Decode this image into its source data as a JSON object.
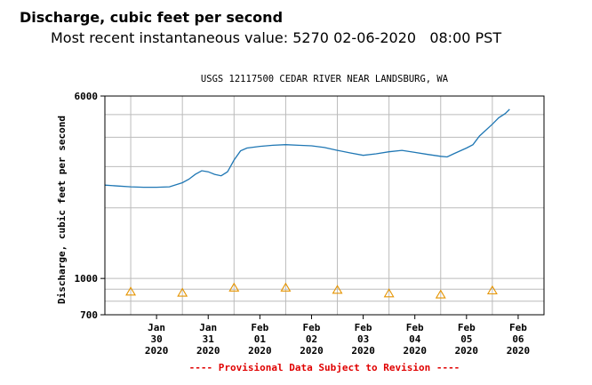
{
  "header": {
    "title": "Discharge, cubic feet per second",
    "recent_label": "Most recent instantaneous value:",
    "recent_value": "5270",
    "recent_date": "02-06-2020",
    "recent_time": "08:00 PST"
  },
  "chart_data": {
    "type": "line",
    "title": "USGS 12117500 CEDAR RIVER NEAR LANDSBURG, WA",
    "ylabel": "Discharge, cubic feet per second",
    "xlabel": "",
    "yscale": "log",
    "ylim": [
      700,
      6000
    ],
    "xlim": [
      "2020-01-29T12:00",
      "2020-02-07T00:00"
    ],
    "y_tick_labels": [
      "700",
      "1000",
      "6000"
    ],
    "x_tick_labels": [
      {
        "date": "2020-01-30",
        "line1": "Jan",
        "line2": "30",
        "line3": "2020"
      },
      {
        "date": "2020-01-31",
        "line1": "Jan",
        "line2": "31",
        "line3": "2020"
      },
      {
        "date": "2020-02-01",
        "line1": "Feb",
        "line2": "01",
        "line3": "2020"
      },
      {
        "date": "2020-02-02",
        "line1": "Feb",
        "line2": "02",
        "line3": "2020"
      },
      {
        "date": "2020-02-03",
        "line1": "Feb",
        "line2": "03",
        "line3": "2020"
      },
      {
        "date": "2020-02-04",
        "line1": "Feb",
        "line2": "04",
        "line3": "2020"
      },
      {
        "date": "2020-02-05",
        "line1": "Feb",
        "line2": "05",
        "line3": "2020"
      },
      {
        "date": "2020-02-06",
        "line1": "Feb",
        "line2": "06",
        "line3": "2020"
      }
    ],
    "grid": true,
    "footnote": "---- Provisional Data Subject to Revision ----",
    "colors": {
      "discharge_line": "#1f77b4",
      "median_marker": "#e59400",
      "footnote": "#e00000",
      "grid": "#bbbbbb",
      "frame": "#000000"
    },
    "series": [
      {
        "values": [
          {
            "x": "2020-01-29T12:00",
            "y": 2500
          },
          {
            "x": "2020-01-29T18:00",
            "y": 2480
          },
          {
            "x": "2020-01-30T00:00",
            "y": 2460
          },
          {
            "x": "2020-01-30T06:00",
            "y": 2450
          },
          {
            "x": "2020-01-30T12:00",
            "y": 2450
          },
          {
            "x": "2020-01-30T18:00",
            "y": 2460
          },
          {
            "x": "2020-01-31T00:00",
            "y": 2560
          },
          {
            "x": "2020-01-31T03:00",
            "y": 2650
          },
          {
            "x": "2020-01-31T06:00",
            "y": 2780
          },
          {
            "x": "2020-01-31T09:00",
            "y": 2880
          },
          {
            "x": "2020-01-31T12:00",
            "y": 2850
          },
          {
            "x": "2020-01-31T15:00",
            "y": 2780
          },
          {
            "x": "2020-01-31T18:00",
            "y": 2740
          },
          {
            "x": "2020-01-31T21:00",
            "y": 2850
          },
          {
            "x": "2020-02-01T00:00",
            "y": 3200
          },
          {
            "x": "2020-02-01T03:00",
            "y": 3500
          },
          {
            "x": "2020-02-01T06:00",
            "y": 3600
          },
          {
            "x": "2020-02-01T12:00",
            "y": 3660
          },
          {
            "x": "2020-02-01T18:00",
            "y": 3700
          },
          {
            "x": "2020-02-02T00:00",
            "y": 3720
          },
          {
            "x": "2020-02-02T06:00",
            "y": 3700
          },
          {
            "x": "2020-02-02T12:00",
            "y": 3680
          },
          {
            "x": "2020-02-02T18:00",
            "y": 3620
          },
          {
            "x": "2020-02-03T00:00",
            "y": 3520
          },
          {
            "x": "2020-02-03T06:00",
            "y": 3430
          },
          {
            "x": "2020-02-03T12:00",
            "y": 3350
          },
          {
            "x": "2020-02-03T18:00",
            "y": 3400
          },
          {
            "x": "2020-02-04T00:00",
            "y": 3470
          },
          {
            "x": "2020-02-04T06:00",
            "y": 3520
          },
          {
            "x": "2020-02-04T12:00",
            "y": 3450
          },
          {
            "x": "2020-02-04T18:00",
            "y": 3380
          },
          {
            "x": "2020-02-05T00:00",
            "y": 3320
          },
          {
            "x": "2020-02-05T03:00",
            "y": 3300
          },
          {
            "x": "2020-02-05T06:00",
            "y": 3400
          },
          {
            "x": "2020-02-05T12:00",
            "y": 3600
          },
          {
            "x": "2020-02-05T15:00",
            "y": 3720
          },
          {
            "x": "2020-02-05T18:00",
            "y": 4050
          },
          {
            "x": "2020-02-06T00:00",
            "y": 4550
          },
          {
            "x": "2020-02-06T03:00",
            "y": 4850
          },
          {
            "x": "2020-02-06T06:00",
            "y": 5050
          },
          {
            "x": "2020-02-06T08:00",
            "y": 5270
          }
        ]
      },
      {
        "values": [
          {
            "x": "2020-01-30T00:00",
            "y": 880
          },
          {
            "x": "2020-01-31T00:00",
            "y": 870
          },
          {
            "x": "2020-02-01T00:00",
            "y": 915
          },
          {
            "x": "2020-02-02T00:00",
            "y": 915
          },
          {
            "x": "2020-02-03T00:00",
            "y": 895
          },
          {
            "x": "2020-02-04T00:00",
            "y": 865
          },
          {
            "x": "2020-02-05T00:00",
            "y": 855
          },
          {
            "x": "2020-02-06T00:00",
            "y": 890
          }
        ]
      }
    ]
  }
}
